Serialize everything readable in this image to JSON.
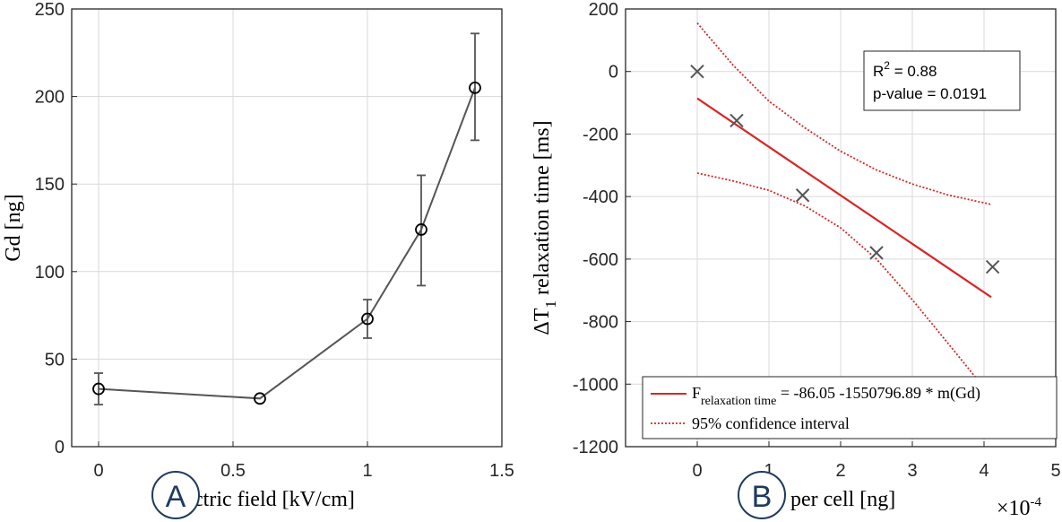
{
  "chart_data": [
    {
      "type": "line",
      "panel": "A",
      "xlabel": "Electric field [kV/cm]",
      "xlabel_visible": "ctric field [kV/cm]",
      "ylabel": "Gd [ng]",
      "xlim": [
        -0.1,
        1.5
      ],
      "ylim": [
        0,
        250
      ],
      "xticks": [
        0,
        0.5,
        1,
        1.5
      ],
      "xtick_labels": [
        "0",
        "0.5",
        "1",
        "1.5"
      ],
      "yticks": [
        0,
        50,
        100,
        150,
        200,
        250
      ],
      "ytick_labels": [
        "0",
        "50",
        "100",
        "150",
        "200",
        "250"
      ],
      "grid": true,
      "series": [
        {
          "x": [
            0,
            0.6,
            1.0,
            1.2,
            1.4
          ],
          "y": [
            33,
            27.5,
            73,
            124,
            205
          ],
          "err_low": [
            24,
            27.5,
            62,
            92,
            175
          ],
          "err_high": [
            42,
            27.5,
            84,
            155,
            236
          ],
          "color": "#555555",
          "marker": "circle"
        }
      ]
    },
    {
      "type": "scatter",
      "panel": "B",
      "xlabel_visible": "per cell [ng]",
      "ylabel_pre": "ΔT",
      "ylabel_sub": "1",
      "ylabel_post": " relaxation time [ms]",
      "x_multiplier_base": "×10",
      "x_multiplier_exp": "-4",
      "xlim": [
        -1,
        5
      ],
      "ylim": [
        -1200,
        200
      ],
      "xticks": [
        0,
        1,
        2,
        3,
        4,
        5
      ],
      "xtick_labels": [
        "0",
        "1",
        "2",
        "3",
        "4",
        "5"
      ],
      "yticks": [
        -1200,
        -1000,
        -800,
        -600,
        -400,
        -200,
        0,
        200
      ],
      "ytick_labels": [
        "-1200",
        "-1000",
        "-800",
        "-600",
        "-400",
        "-200",
        "0",
        "200"
      ],
      "grid": true,
      "points": {
        "x": [
          0,
          0.55,
          1.47,
          2.5,
          4.12
        ],
        "y": [
          0,
          -157,
          -396,
          -580,
          -625
        ],
        "marker": "x",
        "color": "#555555"
      },
      "fit": {
        "x": [
          0,
          4.1
        ],
        "y": [
          -86.05,
          -721.9
        ],
        "color": "#d62728"
      },
      "ci_upper": {
        "x": [
          0,
          0.5,
          1,
          1.5,
          2,
          2.5,
          3,
          3.5,
          4.1
        ],
        "y": [
          155,
          20,
          -95,
          -180,
          -255,
          -315,
          -360,
          -395,
          -425
        ]
      },
      "ci_lower": {
        "x": [
          0,
          0.5,
          1,
          1.5,
          2,
          2.5,
          3,
          3.5,
          4.1
        ],
        "y": [
          -325,
          -350,
          -380,
          -430,
          -500,
          -600,
          -730,
          -870,
          -1040
        ]
      },
      "annotation": {
        "r2_pre": "R",
        "r2_sup": "2",
        "r2_post": " = 0.88",
        "pvalue": "p-value = 0.0191"
      },
      "legend": {
        "placement": "bottom",
        "fit_label_pre": "F",
        "fit_label_sub": "relaxation time",
        "fit_label_post": " = -86.05 -1550796.89 * m(Gd)",
        "ci_label": "95% confidence interval"
      }
    }
  ],
  "badges": {
    "a": "A",
    "b": "B"
  }
}
